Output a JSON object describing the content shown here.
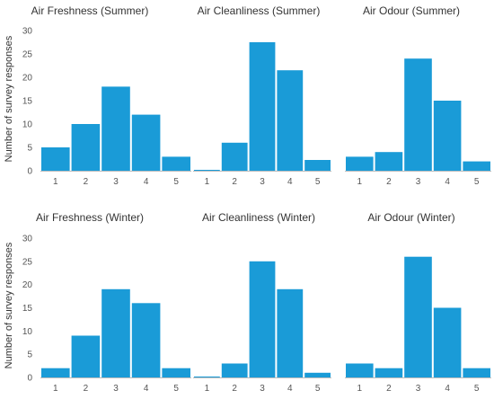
{
  "chart_data": [
    {
      "type": "bar",
      "title": "Air Freshness (Summer)",
      "categories": [
        "1",
        "2",
        "3",
        "4",
        "5"
      ],
      "values": [
        5,
        10,
        18,
        12,
        3
      ],
      "ylabel": "Number of survey responses",
      "ylim": [
        0,
        30
      ],
      "yticks": [
        0,
        5,
        10,
        15,
        20,
        25,
        30
      ],
      "color": "#1a9bd7",
      "grid": false
    },
    {
      "type": "bar",
      "title": "Air Cleanliness (Summer)",
      "categories": [
        "1",
        "2",
        "3",
        "4",
        "5"
      ],
      "values": [
        0.2,
        6,
        27.5,
        21.5,
        2.3
      ],
      "ylim": [
        0,
        30
      ],
      "color": "#1a9bd7",
      "grid": false
    },
    {
      "type": "bar",
      "title": "Air Odour (Summer)",
      "categories": [
        "1",
        "2",
        "3",
        "4",
        "5"
      ],
      "values": [
        3,
        4,
        24,
        15,
        2
      ],
      "ylim": [
        0,
        30
      ],
      "color": "#1a9bd7",
      "grid": false
    },
    {
      "type": "bar",
      "title": "Air Freshness (Winter)",
      "categories": [
        "1",
        "2",
        "3",
        "4",
        "5"
      ],
      "values": [
        2,
        9,
        19,
        16,
        2
      ],
      "ylabel": "Number of survey responses",
      "ylim": [
        0,
        30
      ],
      "yticks": [
        0,
        5,
        10,
        15,
        20,
        25,
        30
      ],
      "color": "#1a9bd7",
      "grid": false
    },
    {
      "type": "bar",
      "title": "Air Cleanliness (Winter)",
      "categories": [
        "1",
        "2",
        "3",
        "4",
        "5"
      ],
      "values": [
        0.2,
        3,
        25,
        19,
        1
      ],
      "ylim": [
        0,
        30
      ],
      "color": "#1a9bd7",
      "grid": false
    },
    {
      "type": "bar",
      "title": "Air Odour (Winter)",
      "categories": [
        "1",
        "2",
        "3",
        "4",
        "5"
      ],
      "values": [
        3,
        2,
        26,
        15,
        2
      ],
      "ylim": [
        0,
        30
      ],
      "color": "#1a9bd7",
      "grid": false
    }
  ]
}
